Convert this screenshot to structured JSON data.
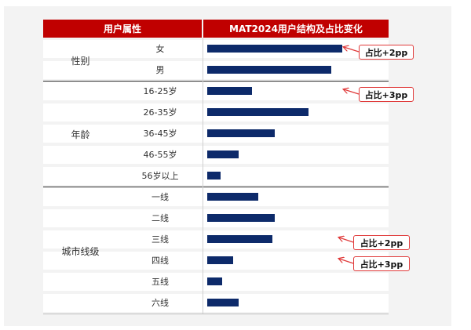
{
  "header": {
    "left_title": "用户属性",
    "right_title": "MAT2024用户结构及占比变化"
  },
  "colors": {
    "header_bg": "#c00000",
    "bar": "#0d2a6a",
    "callout_border": "#e03a3a"
  },
  "groups": [
    {
      "label": "性别",
      "categories": [
        "女",
        "男"
      ]
    },
    {
      "label": "年龄",
      "categories": [
        "16-25岁",
        "26-35岁",
        "36-45岁",
        "46-55岁",
        "56岁以上"
      ]
    },
    {
      "label": "城市线级",
      "categories": [
        "一线",
        "二线",
        "三线",
        "四线",
        "五线",
        "六线"
      ]
    }
  ],
  "callouts": [
    {
      "text": "占比+2pp",
      "category": "女"
    },
    {
      "text": "占比+3pp",
      "category": "16-25岁"
    },
    {
      "text": "占比+2pp",
      "category": "三线"
    },
    {
      "text": "占比+3pp",
      "category": "四线"
    }
  ],
  "chart_data": {
    "type": "bar",
    "orientation": "horizontal",
    "title": "MAT2024用户结构及占比变化",
    "xlabel": "",
    "ylabel": "",
    "xlim": [
      0,
      100
    ],
    "grid": false,
    "categories": [
      "女",
      "男",
      "16-25岁",
      "26-35岁",
      "36-45岁",
      "46-55岁",
      "56岁以上",
      "一线",
      "二线",
      "三线",
      "四线",
      "五线",
      "六线"
    ],
    "values": [
      100,
      92,
      33,
      75,
      50,
      23,
      10,
      38,
      50,
      48,
      19,
      11,
      23
    ]
  }
}
